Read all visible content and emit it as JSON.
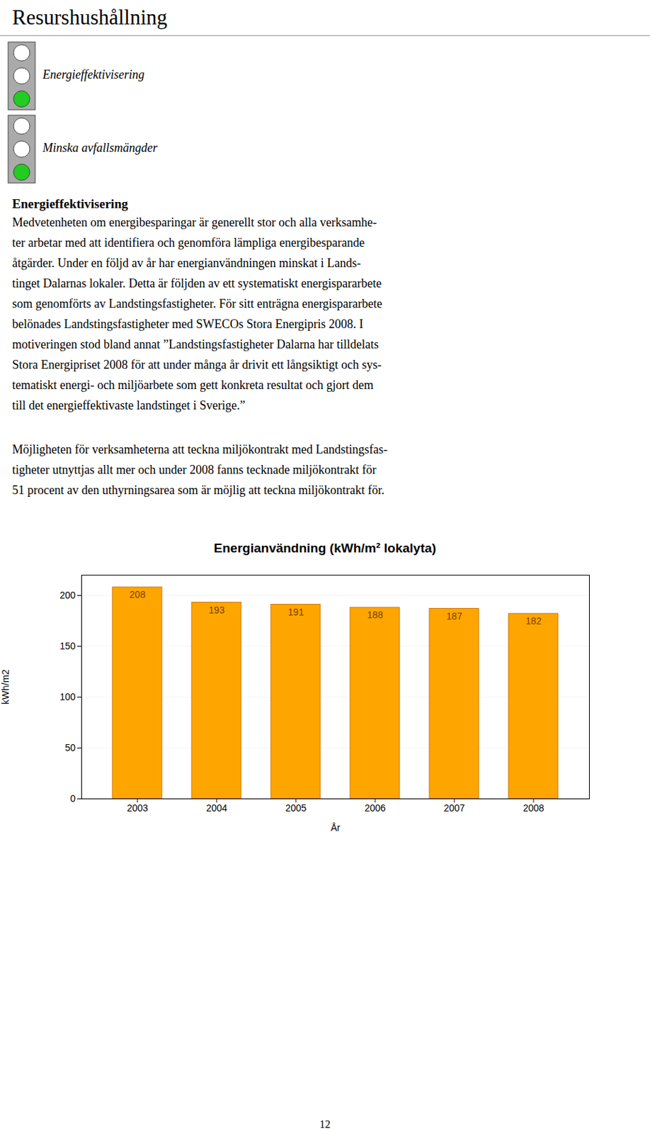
{
  "page": {
    "title": "Resurshushållning",
    "icon_labels": [
      "Energieffektivisering",
      "Minska avfallsmängder"
    ],
    "section_title": "Energieffektivisering",
    "paragraphs": [
      [
        "Medvetenheten om energibesparingar är generellt stor och alla verksamhe-",
        "ter arbetar med att identifiera och genomföra lämpliga energibesparande",
        "åtgärder. Under en följd av år har energianvändningen minskat i Lands-",
        "tinget Dalarnas lokaler. Detta är följden av ett systematiskt energispararbete",
        "som genomförts av Landstingsfastigheter. För sitt enträgna energispararbete",
        "belönades Landstingsfastigheter med SWECOs Stora Energipris 2008. I",
        "motiveringen stod bland annat ”Landstingsfastigheter Dalarna har tilldelats",
        "Stora Energipriset 2008 för att under många år drivit ett långsiktigt och sys-",
        "tematiskt energi- och miljöarbete som gett konkreta resultat och gjort dem",
        "till det energieffektivaste landstinget i Sverige.”"
      ],
      [
        "Möjligheten för verksamheterna att teckna miljökontrakt med Landstingsfas-",
        "tigheter utnyttjas allt mer och under 2008 fanns tecknade miljökontrakt för",
        "51 procent av den uthyrningsarea som är möjlig att teckna miljökontrakt för."
      ]
    ],
    "page_number": "12"
  },
  "chart_data": {
    "type": "bar",
    "title": "Energianvändning (kWh/m² lokalyta)",
    "categories": [
      "2003",
      "2004",
      "2005",
      "2006",
      "2007",
      "2008"
    ],
    "values": [
      208,
      193,
      191,
      188,
      187,
      182
    ],
    "color": "#FFA500",
    "xlabel": "År",
    "ylabel": "kWh/m2",
    "ylim": [
      0,
      220
    ],
    "yticks": [
      0,
      50,
      100,
      150,
      200
    ],
    "grid": true,
    "data_labels": true
  }
}
